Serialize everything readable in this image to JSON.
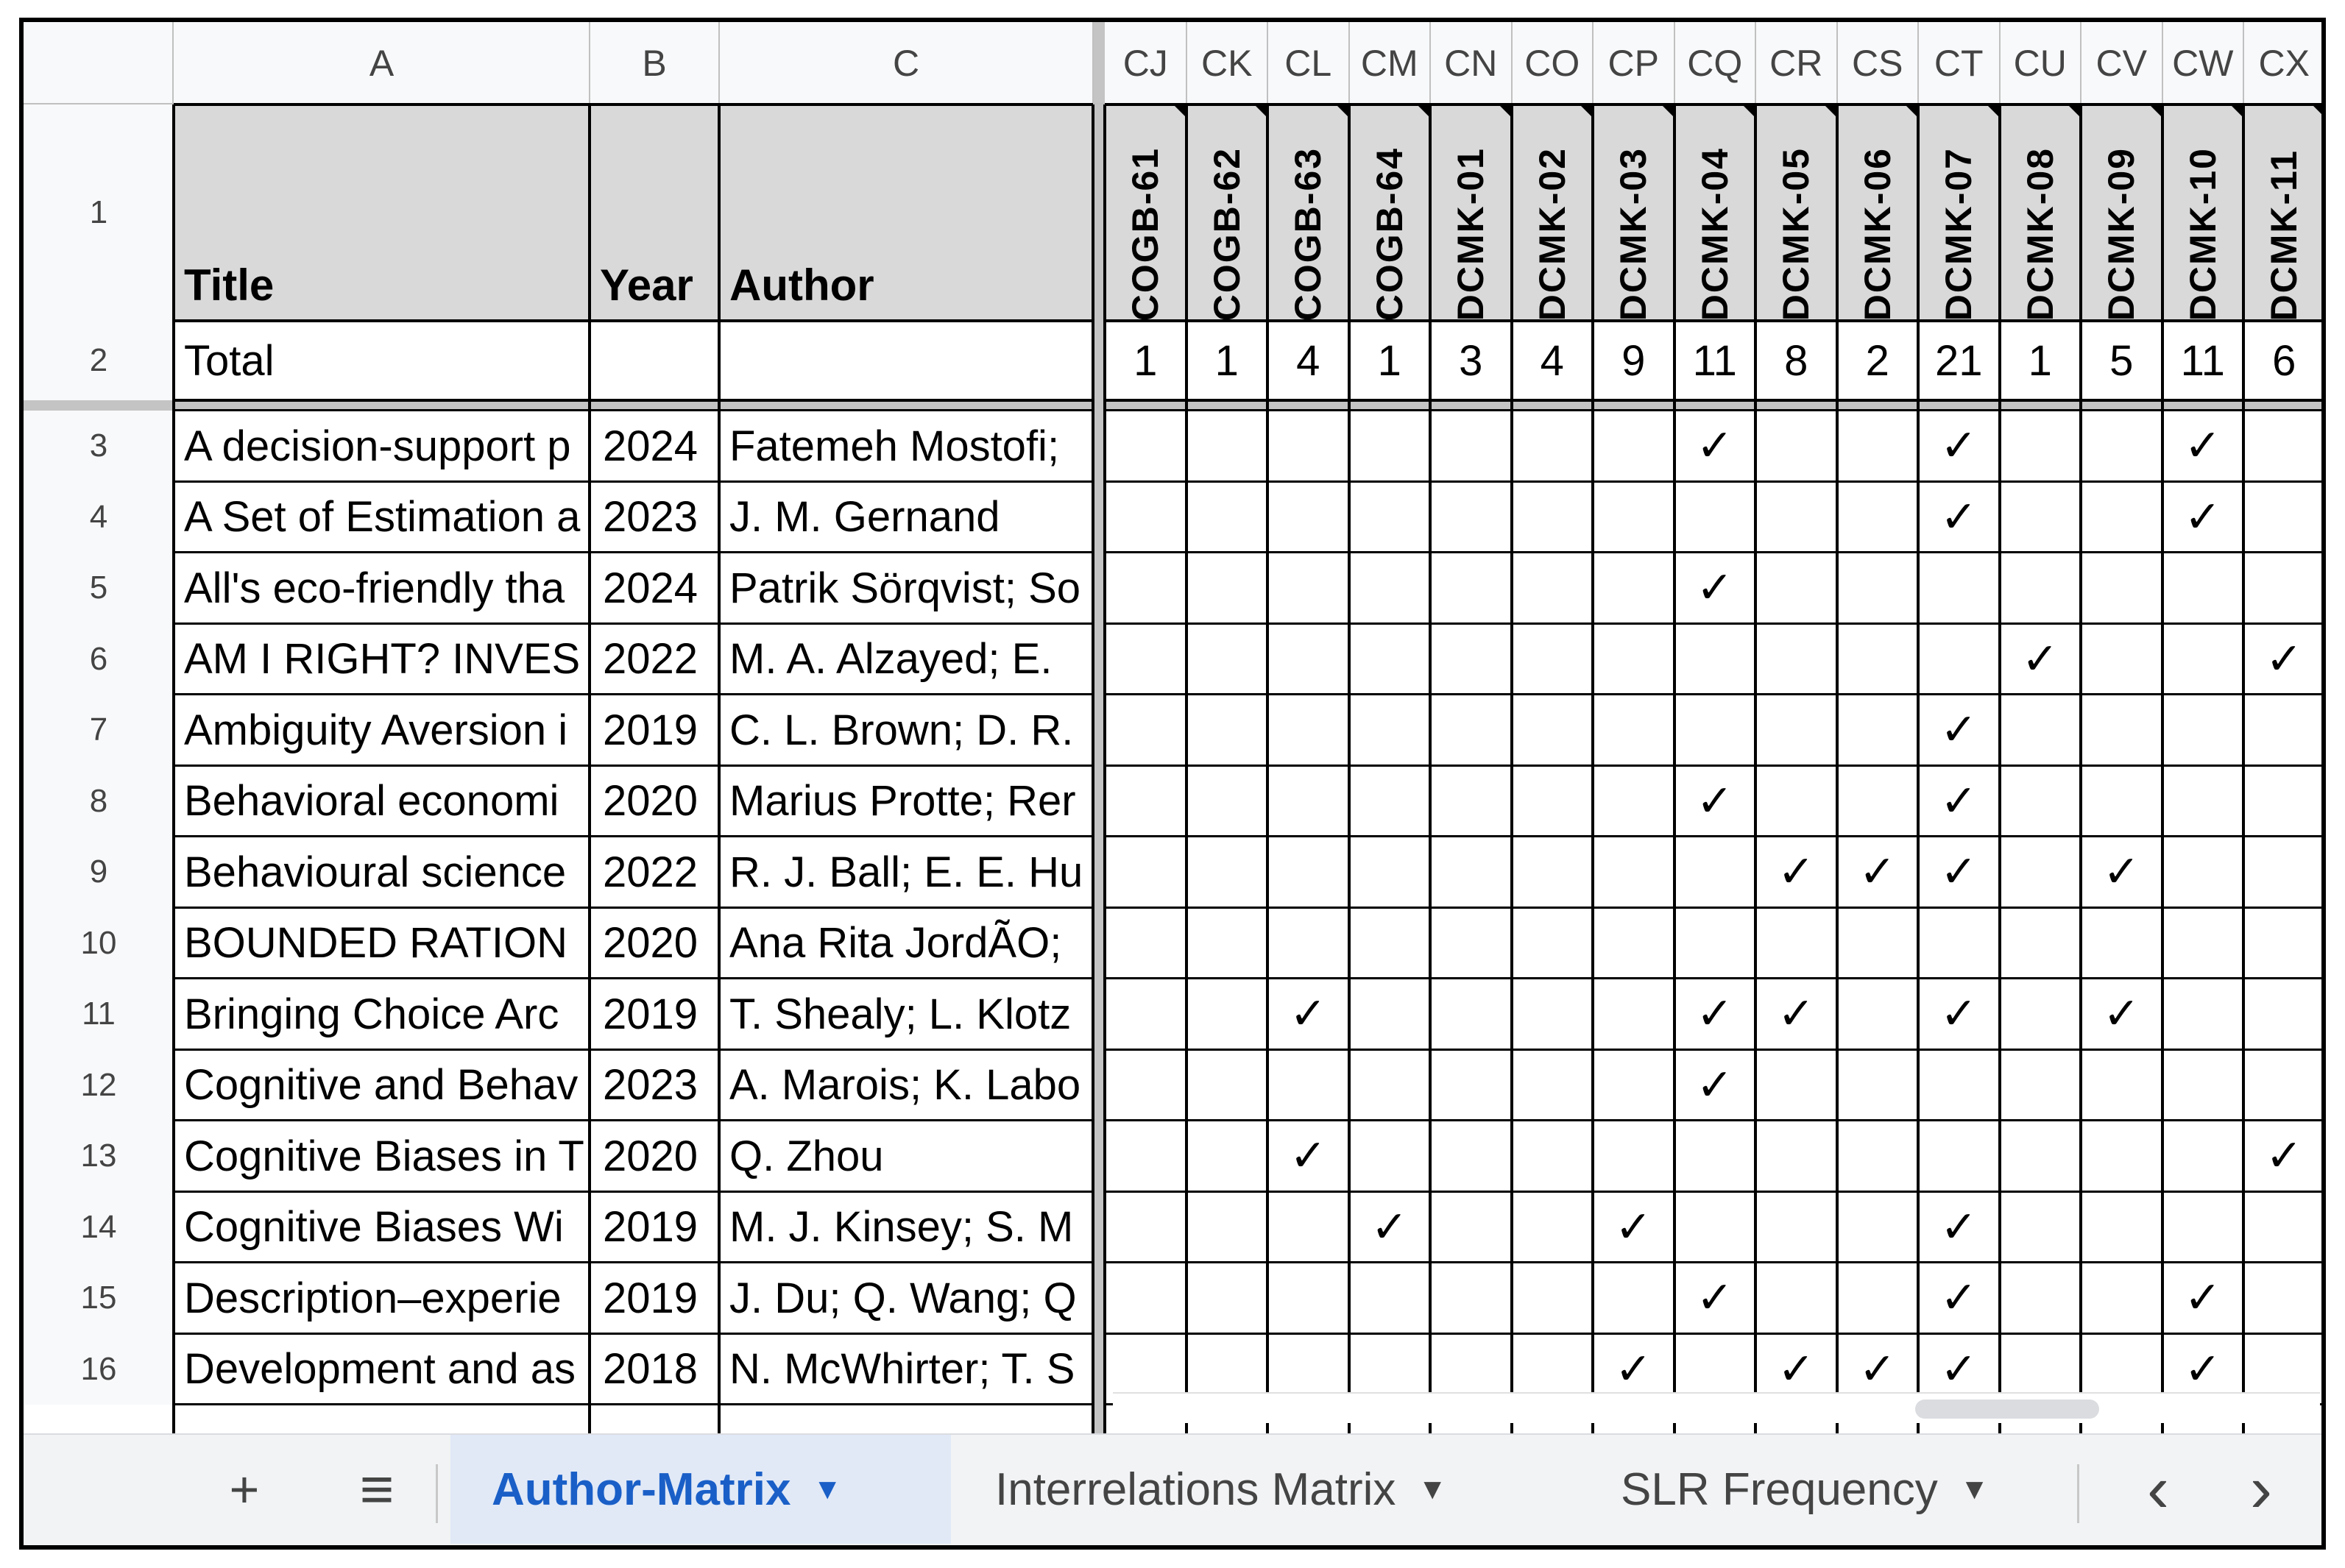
{
  "left_columns": [
    {
      "letter": "A",
      "header": "Title"
    },
    {
      "letter": "B",
      "header": "Year"
    },
    {
      "letter": "C",
      "header": "Author"
    }
  ],
  "code_columns": [
    {
      "letter": "CJ",
      "code": "COGB-61",
      "total": "1"
    },
    {
      "letter": "CK",
      "code": "COGB-62",
      "total": "1"
    },
    {
      "letter": "CL",
      "code": "COGB-63",
      "total": "4"
    },
    {
      "letter": "CM",
      "code": "COGB-64",
      "total": "1"
    },
    {
      "letter": "CN",
      "code": "DCMK-01",
      "total": "3"
    },
    {
      "letter": "CO",
      "code": "DCMK-02",
      "total": "4"
    },
    {
      "letter": "CP",
      "code": "DCMK-03",
      "total": "9"
    },
    {
      "letter": "CQ",
      "code": "DCMK-04",
      "total": "11"
    },
    {
      "letter": "CR",
      "code": "DCMK-05",
      "total": "8"
    },
    {
      "letter": "CS",
      "code": "DCMK-06",
      "total": "2"
    },
    {
      "letter": "CT",
      "code": "DCMK-07",
      "total": "21"
    },
    {
      "letter": "CU",
      "code": "DCMK-08",
      "total": "1"
    },
    {
      "letter": "CV",
      "code": "DCMK-09",
      "total": "5"
    },
    {
      "letter": "CW",
      "code": "DCMK-10",
      "total": "11"
    },
    {
      "letter": "CX",
      "code": "DCMK-11",
      "total": "6"
    }
  ],
  "row_numbers": {
    "header": "1",
    "total": "2"
  },
  "total_label": "Total",
  "check_glyph": "✓",
  "rows": [
    {
      "num": "3",
      "title": "A decision-support p",
      "year": "2024",
      "author": "Fatemeh Mostofi;",
      "checks": [
        "CQ",
        "CT",
        "CW"
      ]
    },
    {
      "num": "4",
      "title": "A Set of Estimation a",
      "year": "2023",
      "author": "J. M. Gernand",
      "checks": [
        "CT",
        "CW"
      ]
    },
    {
      "num": "5",
      "title": "All's eco-friendly tha",
      "year": "2024",
      "author": "Patrik Sörqvist; So",
      "checks": [
        "CQ"
      ]
    },
    {
      "num": "6",
      "title": "AM I RIGHT? INVES",
      "year": "2022",
      "author": "M. A. Alzayed; E.",
      "checks": [
        "CU",
        "CX"
      ]
    },
    {
      "num": "7",
      "title": "Ambiguity Aversion i",
      "year": "2019",
      "author": "C. L. Brown; D. R.",
      "checks": [
        "CT"
      ]
    },
    {
      "num": "8",
      "title": "Behavioral economi",
      "year": "2020",
      "author": "Marius Protte; Rer",
      "checks": [
        "CQ",
        "CT"
      ]
    },
    {
      "num": "9",
      "title": "Behavioural science",
      "year": "2022",
      "author": "R. J. Ball; E. E. Hu",
      "checks": [
        "CR",
        "CS",
        "CT",
        "CV"
      ]
    },
    {
      "num": "10",
      "title": "BOUNDED RATION",
      "year": "2020",
      "author": "Ana Rita JordÃO;",
      "checks": []
    },
    {
      "num": "11",
      "title": "Bringing Choice Arc",
      "year": "2019",
      "author": "T. Shealy; L. Klotz",
      "checks": [
        "CL",
        "CQ",
        "CR",
        "CT",
        "CV"
      ]
    },
    {
      "num": "12",
      "title": "Cognitive and Behav",
      "year": "2023",
      "author": "A. Marois; K. Labo",
      "checks": [
        "CQ"
      ]
    },
    {
      "num": "13",
      "title": "Cognitive Biases in T",
      "year": "2020",
      "author": "Q. Zhou",
      "checks": [
        "CL",
        "CX"
      ]
    },
    {
      "num": "14",
      "title": "Cognitive Biases Wi",
      "year": "2019",
      "author": "M. J. Kinsey; S. M",
      "checks": [
        "CM",
        "CP",
        "CT"
      ]
    },
    {
      "num": "15",
      "title": "Description–experie",
      "year": "2019",
      "author": "J. Du; Q. Wang; Q",
      "checks": [
        "CQ",
        "CT",
        "CW"
      ]
    },
    {
      "num": "16",
      "title": "Development and as",
      "year": "2018",
      "author": "N. McWhirter; T. S",
      "checks": [
        "CP",
        "CR",
        "CS",
        "CT",
        "CW"
      ]
    }
  ],
  "tabs": [
    {
      "label": "Author-Matrix",
      "active": true
    },
    {
      "label": "Interrelations Matrix",
      "active": false
    },
    {
      "label": "SLR Frequency",
      "active": false
    }
  ],
  "icons": {
    "add_sheet": "+",
    "all_sheets": "≡",
    "dropdown": "▼",
    "scroll_left": "‹",
    "scroll_right": "›"
  }
}
